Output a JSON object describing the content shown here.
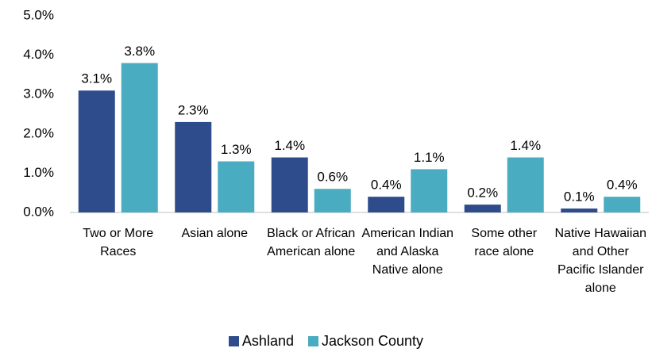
{
  "chart_data": {
    "type": "bar",
    "categories": [
      "Two or More Races",
      "Asian alone",
      "Black or African American alone",
      "American Indian and Alaska Native alone",
      "Some other race alone",
      "Native Hawaiian and Other Pacific Islander alone"
    ],
    "series": [
      {
        "name": "Ashland",
        "color": "#2e4c8c",
        "values": [
          3.1,
          2.3,
          1.4,
          0.4,
          0.2,
          0.1
        ],
        "value_labels": [
          "3.1%",
          "2.3%",
          "1.4%",
          "0.4%",
          "0.2%",
          "0.1%"
        ]
      },
      {
        "name": "Jackson County",
        "color": "#4aacc1",
        "values": [
          3.8,
          1.3,
          0.6,
          1.1,
          1.4,
          0.4
        ],
        "value_labels": [
          "3.8%",
          "1.3%",
          "0.6%",
          "1.1%",
          "1.4%",
          "0.4%"
        ]
      }
    ],
    "ylim": [
      0,
      5
    ],
    "yticks": [
      {
        "value": 0,
        "label": "0.0%"
      },
      {
        "value": 1,
        "label": "1.0%"
      },
      {
        "value": 2,
        "label": "2.0%"
      },
      {
        "value": 3,
        "label": "3.0%"
      },
      {
        "value": 4,
        "label": "4.0%"
      },
      {
        "value": 5,
        "label": "5.0%"
      }
    ],
    "legend": "bottom"
  }
}
